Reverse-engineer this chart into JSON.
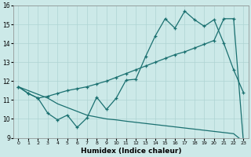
{
  "xlabel": "Humidex (Indice chaleur)",
  "xlim": [
    -0.5,
    23.5
  ],
  "ylim": [
    9,
    16
  ],
  "yticks": [
    9,
    10,
    11,
    12,
    13,
    14,
    15,
    16
  ],
  "xticks": [
    0,
    1,
    2,
    3,
    4,
    5,
    6,
    7,
    8,
    9,
    10,
    11,
    12,
    13,
    14,
    15,
    16,
    17,
    18,
    19,
    20,
    21,
    22,
    23
  ],
  "bg_color": "#cce9e8",
  "line_color": "#1a7070",
  "grid_color": "#aed4d3",
  "line1_y": [
    11.7,
    11.35,
    11.1,
    10.3,
    9.95,
    10.2,
    9.55,
    10.05,
    11.15,
    10.5,
    11.1,
    12.05,
    12.1,
    13.3,
    14.4,
    15.3,
    14.8,
    15.7,
    15.25,
    14.9,
    15.25,
    14.0,
    12.6,
    11.4
  ],
  "line2_y": [
    11.7,
    11.35,
    11.1,
    11.2,
    11.35,
    11.5,
    11.6,
    11.7,
    11.85,
    12.0,
    12.2,
    12.4,
    12.6,
    12.8,
    13.0,
    13.2,
    13.4,
    13.55,
    13.75,
    13.95,
    14.15,
    15.3,
    15.3,
    8.8
  ],
  "line3_y": [
    11.7,
    11.5,
    11.3,
    11.1,
    10.8,
    10.6,
    10.4,
    10.2,
    10.1,
    10.0,
    9.95,
    9.88,
    9.82,
    9.76,
    9.7,
    9.64,
    9.58,
    9.52,
    9.46,
    9.4,
    9.34,
    9.28,
    9.22,
    8.8
  ]
}
